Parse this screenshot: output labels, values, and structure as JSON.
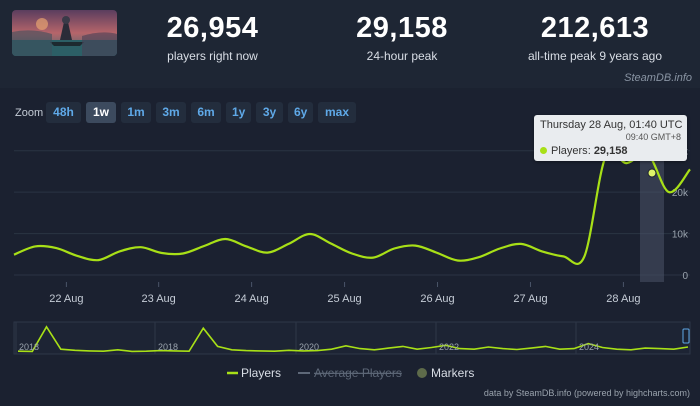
{
  "header": {
    "players_now": "26,954",
    "players_now_label": "players right now",
    "peak_24h": "29,158",
    "peak_24h_label": "24-hour peak",
    "all_time_peak": "212,613",
    "all_time_peak_label": "all-time peak 9 years ago",
    "brand": "SteamDB.info"
  },
  "zoom": {
    "label": "Zoom",
    "buttons": [
      "48h",
      "1w",
      "1m",
      "3m",
      "6m",
      "1y",
      "3y",
      "6y",
      "max"
    ],
    "active": "1w"
  },
  "tooltip": {
    "time": "Thursday 28 Aug, 01:40 UTC",
    "local_time": "09:40 GMT+8",
    "series": "Players",
    "value": "29,158"
  },
  "legend": {
    "players": "Players",
    "average_players": "Average Players",
    "markers": "Markers"
  },
  "credit": "data by SteamDB.info (powered by highcharts.com)",
  "colors": {
    "series": "#a8e017",
    "background": "#1b2130",
    "zoom_text": "#5fa9e8"
  },
  "chart_data": [
    {
      "type": "line",
      "title": "",
      "x": [
        "21 Aug",
        "21 Aug",
        "21 Aug",
        "22 Aug",
        "22 Aug",
        "22 Aug",
        "22 Aug",
        "23 Aug",
        "23 Aug",
        "23 Aug",
        "23 Aug",
        "24 Aug",
        "24 Aug",
        "24 Aug",
        "24 Aug",
        "25 Aug",
        "25 Aug",
        "25 Aug",
        "25 Aug",
        "26 Aug",
        "26 Aug",
        "26 Aug",
        "26 Aug",
        "27 Aug",
        "27 Aug",
        "27 Aug",
        "27 Aug",
        "27 Aug",
        "28 Aug",
        "28 Aug",
        "28 Aug",
        "28 Aug",
        "28 Aug"
      ],
      "x_ticks": [
        "22 Aug",
        "23 Aug",
        "24 Aug",
        "25 Aug",
        "26 Aug",
        "27 Aug",
        "28 Aug"
      ],
      "series": [
        {
          "name": "Players",
          "values": [
            4900,
            6900,
            6500,
            4600,
            3600,
            5700,
            6700,
            5300,
            5200,
            7000,
            8700,
            6900,
            5400,
            7500,
            9900,
            7600,
            5200,
            4200,
            6400,
            7100,
            5400,
            3500,
            4300,
            6400,
            7500,
            5700,
            4500,
            4500,
            28500,
            27000,
            29158,
            20000,
            25500
          ]
        }
      ],
      "ylim": [
        0,
        35000
      ],
      "y_ticks": [
        "0",
        "10k",
        "20k",
        "30k"
      ],
      "xlabel": "",
      "ylabel": "",
      "grid": true,
      "legend": "bottom"
    },
    {
      "type": "area",
      "title": "",
      "x_ticks": [
        "2018",
        "2018",
        "2020",
        "2022",
        "2024"
      ],
      "series": [
        {
          "name": "Players",
          "values": [
            3,
            2,
            90,
            10,
            6,
            4,
            3,
            8,
            2,
            3,
            5,
            4,
            3,
            85,
            20,
            8,
            5,
            4,
            3,
            6,
            4,
            5,
            10,
            22,
            12,
            8,
            14,
            20,
            10,
            16,
            24,
            12,
            10,
            18,
            12,
            9,
            14,
            20,
            10,
            12,
            30,
            16,
            10,
            8,
            14,
            12,
            10,
            18
          ]
        }
      ]
    }
  ]
}
